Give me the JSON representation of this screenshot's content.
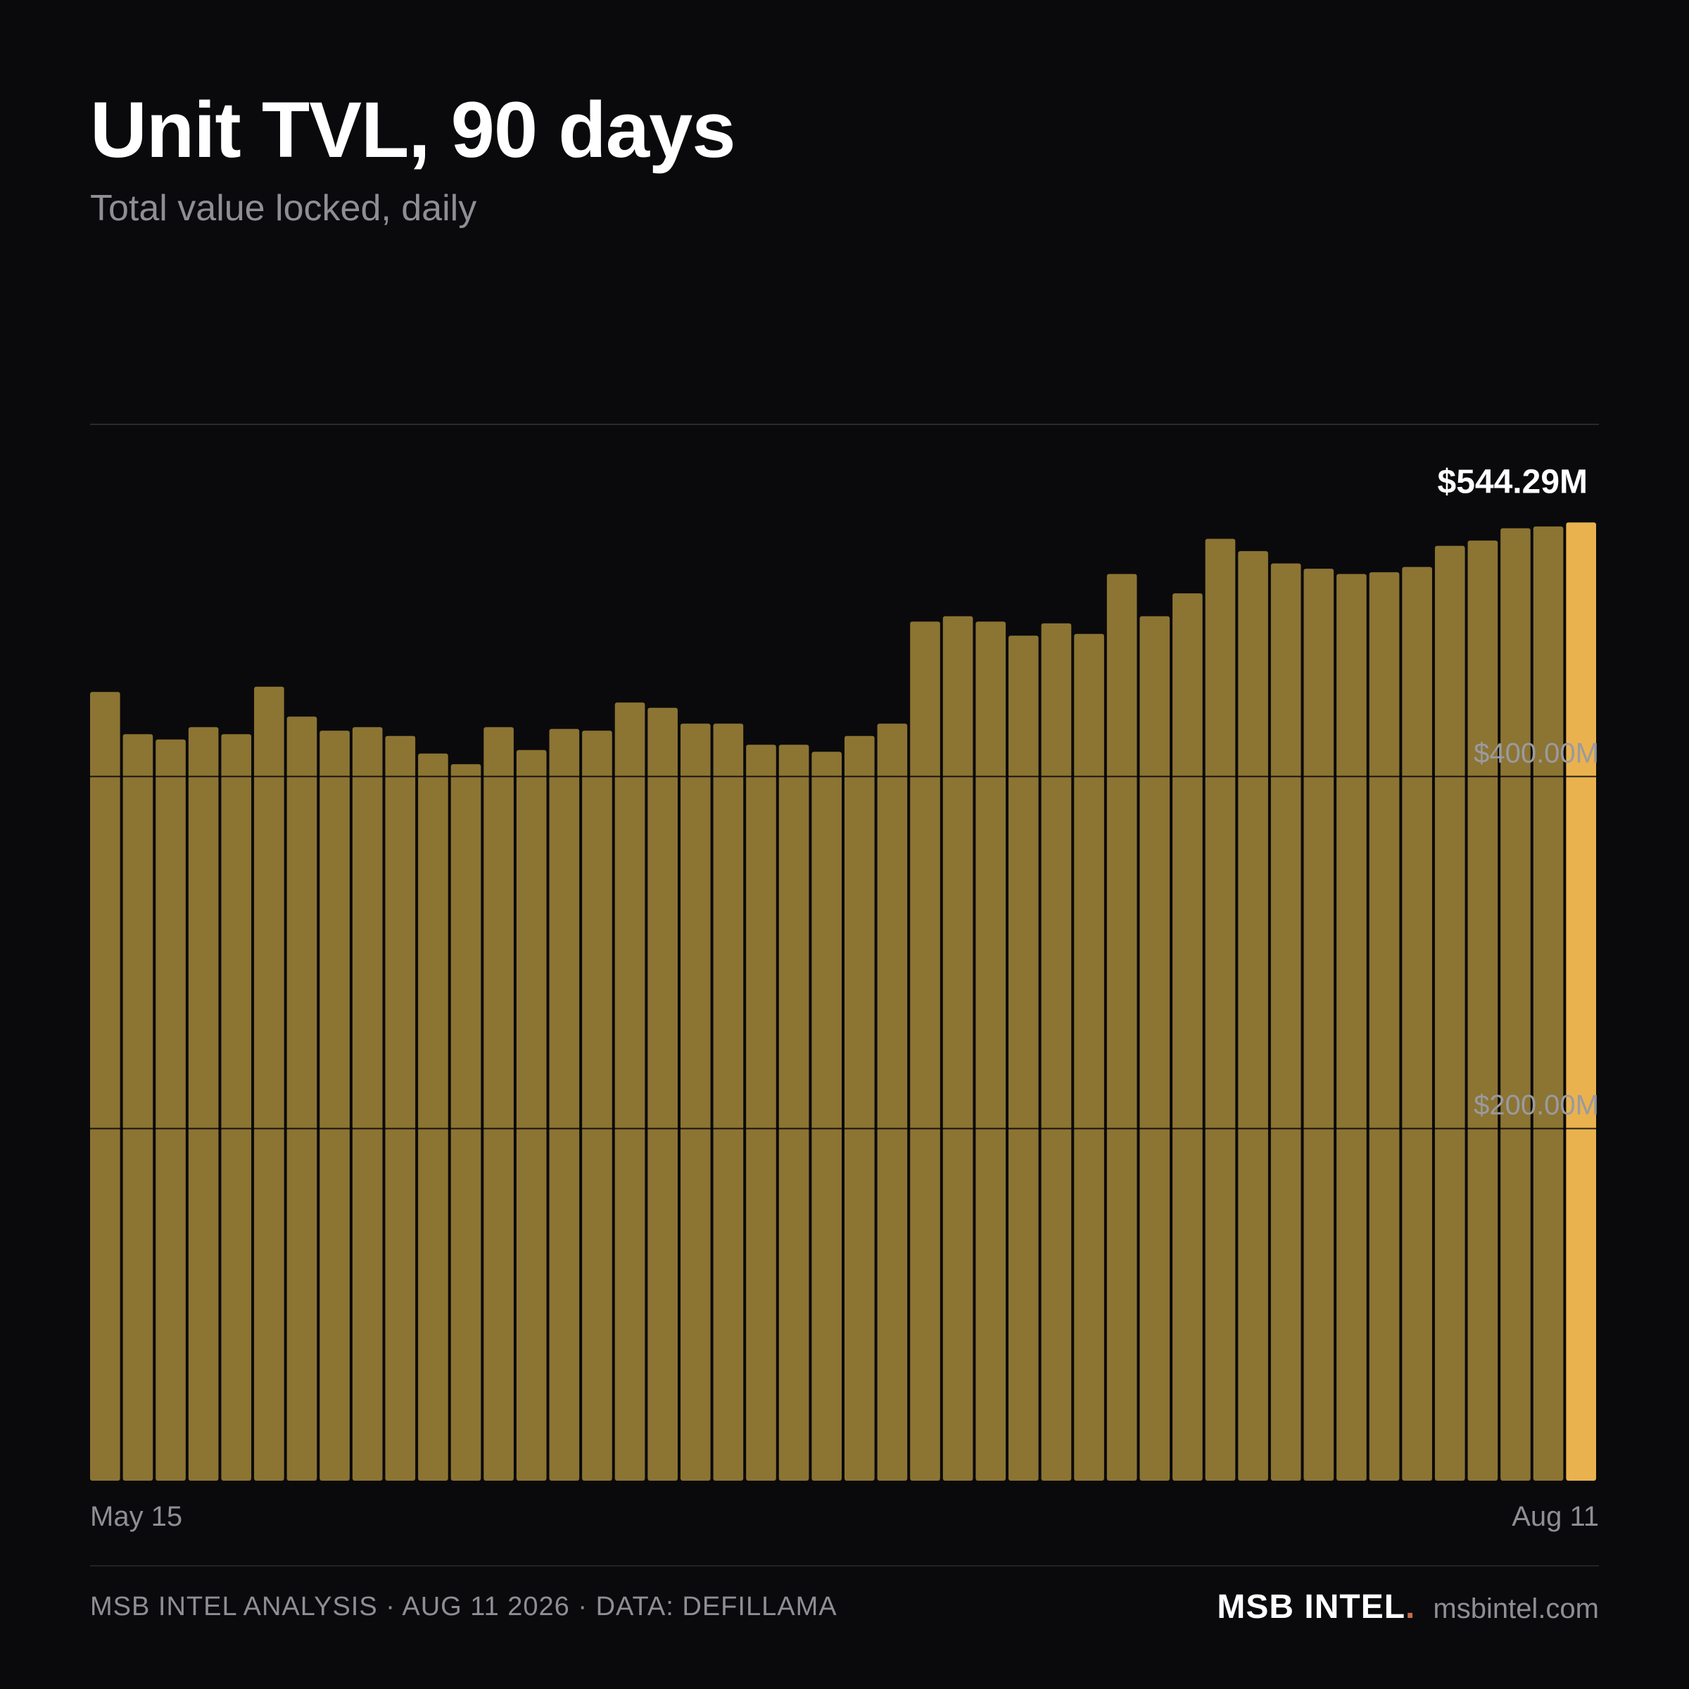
{
  "header": {
    "title": "Unit TVL, 90 days",
    "subtitle": "Total value locked, daily"
  },
  "footer": {
    "meta": "MSB INTEL ANALYSIS · AUG 11 2026 · DATA: DEFILLAMA",
    "brand_name": "MSB INTEL",
    "brand_dot": ".",
    "brand_url": "msbintel.com"
  },
  "colors": {
    "background": "#0a0a0c",
    "bar": "#8c7433",
    "bar_highlight": "#e9b24f",
    "gridline": "#2a2a2e",
    "tick_label": "#9a9aa0",
    "axis_label": "#8e8e94",
    "callout": "#ffffff"
  },
  "chart_data": {
    "type": "bar",
    "title": "Unit TVL, 90 days",
    "subtitle": "Total value locked, daily",
    "x_start_label": "May 15",
    "x_end_label": "Aug 11",
    "ylim": [
      0,
      600
    ],
    "y_unit": "$M",
    "y_ticks": [
      {
        "value": 200,
        "label": "$200.00M"
      },
      {
        "value": 400,
        "label": "$400.00M"
      }
    ],
    "grid": true,
    "values": [
      448,
      424,
      421,
      428,
      424,
      451,
      434,
      426,
      428,
      423,
      413,
      407,
      428,
      415,
      427,
      426,
      442,
      439,
      430,
      430,
      418,
      418,
      414,
      423,
      430,
      488,
      491,
      488,
      480,
      487,
      481,
      515,
      491,
      504,
      535,
      528,
      521,
      518,
      515,
      516,
      519,
      531,
      534,
      541,
      542,
      544.29
    ],
    "highlight_index": 45,
    "highlight_label": "$544.29M"
  }
}
